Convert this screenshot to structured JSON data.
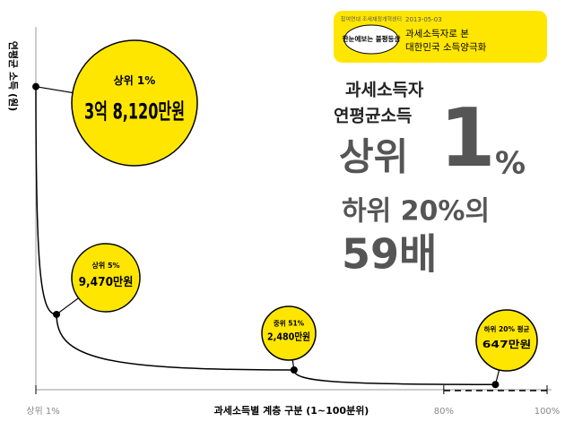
{
  "chart_data": {
    "type": "line",
    "x_label": "과세소득별 계층 구분 (1~100분위)",
    "y_label": "연평균 소득 (원)",
    "x": [
      1,
      5,
      51,
      90
    ],
    "values": [
      38120,
      9470,
      2480,
      647
    ],
    "point_labels": [
      "상위 1%",
      "상위 5%",
      "중위 51%",
      "하위 20% 평균"
    ],
    "value_labels": [
      "3억 8,120만원",
      "9,470만원",
      "2,480만원",
      "647만원"
    ],
    "color": "#000000",
    "callout_color": "#ffe600",
    "xlim": [
      1,
      100
    ],
    "ylim": [
      0,
      40000
    ],
    "xticks": [
      {
        "value": 1,
        "label": "상위 1%"
      },
      {
        "value": 80,
        "label": "80%"
      },
      {
        "value": 100,
        "label": "100%"
      }
    ],
    "annotations": {
      "badge_org": "참여연대 조세재정개혁센터",
      "badge_series": "한눈에보는 불평등상",
      "badge_date": "2013-05-03",
      "badge_title_1": "과세소득자로 본",
      "badge_title_2": "대한민국 소득양극화",
      "headline_1": "과세소득자",
      "headline_2": "연평균소득",
      "headline_3": "상위",
      "headline_4": "1",
      "headline_5": "%",
      "headline_6": "하위 20%의",
      "headline_7": "59배"
    }
  }
}
